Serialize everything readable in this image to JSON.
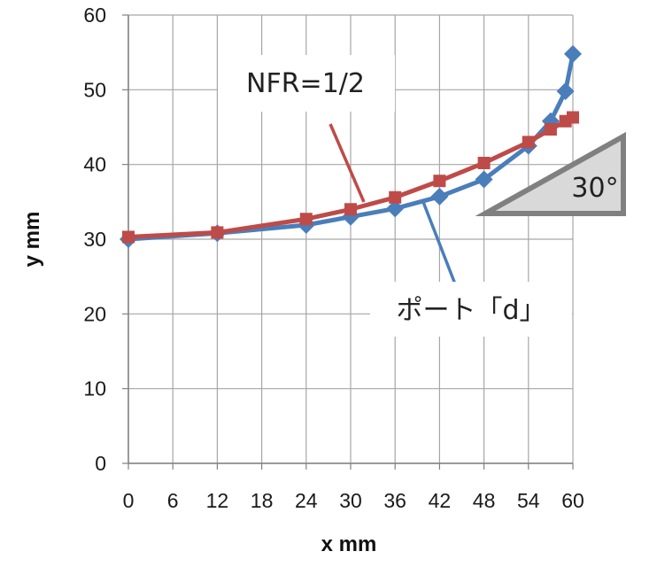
{
  "chart_data": {
    "type": "line",
    "xlabel": "x mm",
    "ylabel": "y mm",
    "xlim": [
      0,
      60
    ],
    "ylim": [
      0,
      60
    ],
    "x_ticks": [
      "0",
      "6",
      "12",
      "18",
      "24",
      "30",
      "36",
      "42",
      "48",
      "54",
      "60"
    ],
    "y_ticks": [
      "0",
      "10",
      "20",
      "30",
      "40",
      "50",
      "60"
    ],
    "grid": true,
    "legend": "none",
    "series": [
      {
        "name": "ポート「d」",
        "color": "#4a7ebb",
        "marker": "diamond",
        "points": [
          [
            0,
            30.0
          ],
          [
            12,
            30.8
          ],
          [
            24,
            31.9
          ],
          [
            30,
            33.0
          ],
          [
            36,
            34.1
          ],
          [
            42,
            35.7
          ],
          [
            48,
            38.0
          ],
          [
            54,
            42.5
          ],
          [
            57,
            45.8
          ],
          [
            59,
            49.8
          ],
          [
            60,
            54.8
          ]
        ]
      },
      {
        "name": "NFR=1/2",
        "color": "#be4b48",
        "marker": "square",
        "points": [
          [
            0,
            30.3
          ],
          [
            12,
            30.9
          ],
          [
            24,
            32.7
          ],
          [
            30,
            34.0
          ],
          [
            36,
            35.6
          ],
          [
            42,
            37.8
          ],
          [
            48,
            40.2
          ],
          [
            54,
            43.0
          ],
          [
            57,
            44.7
          ],
          [
            59,
            45.8
          ],
          [
            60,
            46.3
          ]
        ]
      }
    ],
    "annotations": {
      "nfr_label": "NFR=1/2",
      "port_label": "ポート「d」",
      "angle_label": "30°"
    }
  }
}
